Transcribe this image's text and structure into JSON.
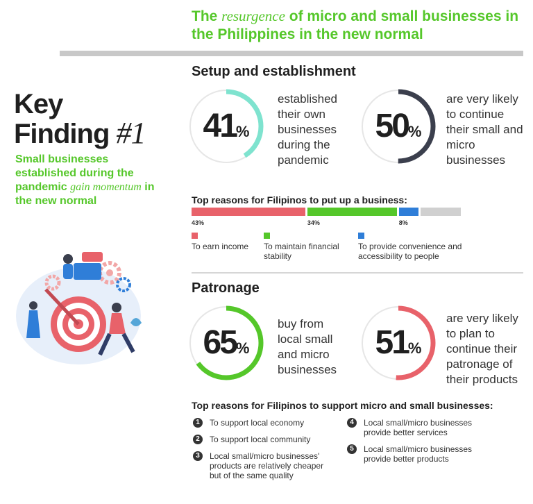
{
  "header": {
    "title_before": "The ",
    "title_emph": "resurgence",
    "title_after": " of micro and small businesses in the Philippines in the new normal"
  },
  "key_finding": {
    "line1": "Key",
    "line2_word": "Finding ",
    "number": "#1",
    "subtitle_before": "Small businesses established during the pandemic ",
    "subtitle_emph": "gain momentum",
    "subtitle_after": " in the new normal"
  },
  "setup": {
    "heading": "Setup and establishment",
    "stat1": {
      "value": "41",
      "unit": "%",
      "text": "established their own businesses during the pandemic"
    },
    "stat2": {
      "value": "50",
      "unit": "%",
      "text": "are very likely to continue their small and micro businesses"
    }
  },
  "reasons": {
    "heading": "Top reasons for Filipinos to put up a business:",
    "items": [
      {
        "percent_label": "43%",
        "label": "To earn income"
      },
      {
        "percent_label": "34%",
        "label": "To maintain financial stability"
      },
      {
        "percent_label": "8%",
        "label": "To provide convenience and accessibility to people"
      }
    ]
  },
  "patronage": {
    "heading": "Patronage",
    "stat1": {
      "value": "65",
      "unit": "%",
      "text": "buy from local small and micro businesses"
    },
    "stat2": {
      "value": "51",
      "unit": "%",
      "text": "are very likely to plan to continue their patronage of their products"
    }
  },
  "support": {
    "heading": "Top reasons for Filipinos to support micro and small businesses:",
    "items": [
      {
        "num": "1",
        "text": "To support local economy"
      },
      {
        "num": "2",
        "text": "To support local community"
      },
      {
        "num": "3",
        "text": "Local small/micro businesses' products are relatively cheaper but of the same quality"
      },
      {
        "num": "4",
        "text": "Local small/micro businesses provide better services"
      },
      {
        "num": "5",
        "text": "Local small/micro businesses provide better products"
      }
    ]
  },
  "colors": {
    "green": "#55c72a",
    "teal": "#7fe3cf",
    "navy": "#3b3f4d",
    "red": "#e8626a",
    "blue": "#2f7ed8",
    "track": "#e6e6e6",
    "remainder": "#d0d0d0"
  },
  "chart_data": [
    {
      "type": "pie",
      "subtype": "donut",
      "name": "setup-41",
      "values": [
        41,
        59
      ],
      "color": "#7fe3cf"
    },
    {
      "type": "pie",
      "subtype": "donut",
      "name": "setup-50",
      "values": [
        50,
        50
      ],
      "color": "#3b3f4d"
    },
    {
      "type": "bar",
      "orientation": "stacked-horizontal",
      "title": "Top reasons for Filipinos to put up a business:",
      "categories": [
        "To earn income",
        "To maintain financial stability",
        "To provide convenience and accessibility to people"
      ],
      "values": [
        43,
        34,
        8
      ],
      "colors": [
        "#e8626a",
        "#55c72a",
        "#2f7ed8"
      ]
    },
    {
      "type": "pie",
      "subtype": "donut",
      "name": "patronage-65",
      "values": [
        65,
        35
      ],
      "color": "#55c72a"
    },
    {
      "type": "pie",
      "subtype": "donut",
      "name": "patronage-51",
      "values": [
        51,
        49
      ],
      "color": "#e8626a"
    }
  ]
}
